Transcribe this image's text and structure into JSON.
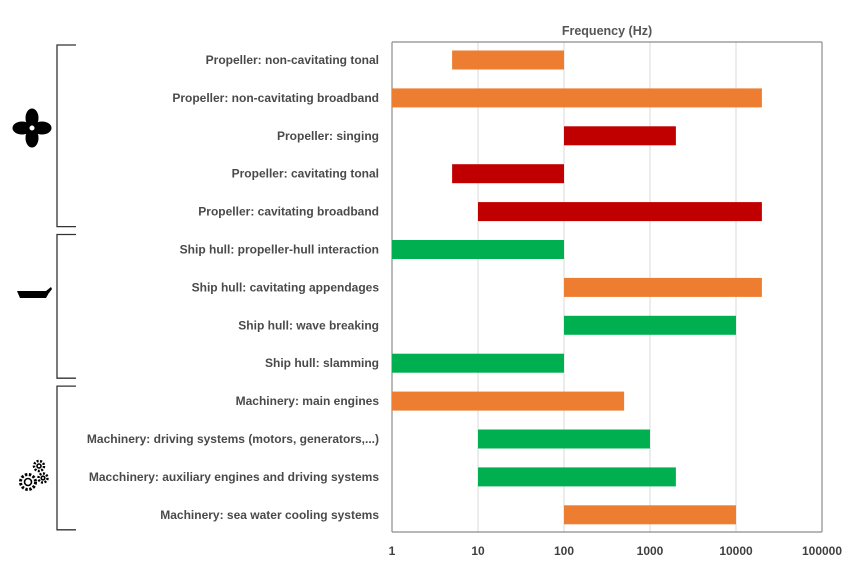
{
  "chart_data": {
    "type": "bar",
    "orientation": "horizontal-range",
    "title": "Frequency (Hz)",
    "x_scale": "log",
    "xlim": [
      1,
      100000
    ],
    "x_ticks": [
      "1",
      "10",
      "100",
      "1000",
      "10000",
      "100000"
    ],
    "grid": true,
    "colors": {
      "orange": "#ED7D31",
      "red": "#C00000",
      "green": "#00B050"
    },
    "categories": [
      "Propeller: non-cavitating tonal",
      "Propeller: non-cavitating broadband",
      "Propeller: singing",
      "Propeller: cavitating tonal",
      "Propeller: cavitating broadband",
      "Ship hull: propeller-hull interaction",
      "Ship hull: cavitating appendages",
      "Ship hull: wave breaking",
      "Ship hull: slamming",
      "Machinery: main engines",
      "Machinery: driving systems (motors, generators,...)",
      "Macchinery: auxiliary engines and driving systems",
      "Machinery: sea water cooling systems"
    ],
    "ranges": [
      {
        "from": 5,
        "to": 100,
        "color": "orange"
      },
      {
        "from": 1,
        "to": 20000,
        "color": "orange"
      },
      {
        "from": 100,
        "to": 2000,
        "color": "red"
      },
      {
        "from": 5,
        "to": 100,
        "color": "red"
      },
      {
        "from": 10,
        "to": 20000,
        "color": "red"
      },
      {
        "from": 1,
        "to": 100,
        "color": "green"
      },
      {
        "from": 100,
        "to": 20000,
        "color": "orange"
      },
      {
        "from": 100,
        "to": 10000,
        "color": "green"
      },
      {
        "from": 1,
        "to": 100,
        "color": "green"
      },
      {
        "from": 1,
        "to": 500,
        "color": "orange"
      },
      {
        "from": 10,
        "to": 1000,
        "color": "green"
      },
      {
        "from": 10,
        "to": 2000,
        "color": "green"
      },
      {
        "from": 100,
        "to": 10000,
        "color": "orange"
      }
    ],
    "groups": [
      {
        "name": "propeller",
        "icon": "propeller-icon",
        "rows": [
          0,
          4
        ]
      },
      {
        "name": "ship-hull",
        "icon": "ship-hull-icon",
        "rows": [
          5,
          8
        ]
      },
      {
        "name": "machinery",
        "icon": "gears-icon",
        "rows": [
          9,
          12
        ]
      }
    ]
  }
}
